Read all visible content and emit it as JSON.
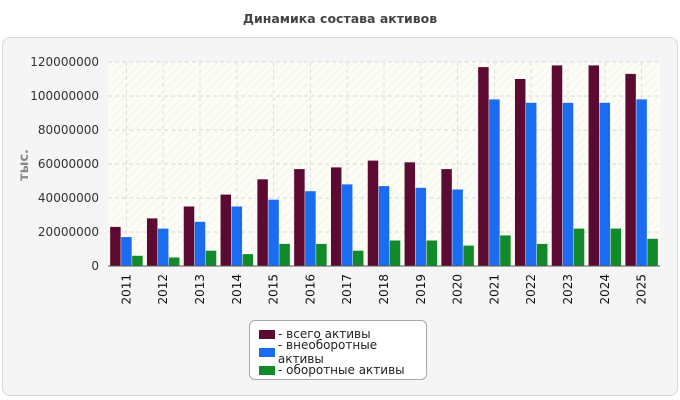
{
  "chart_data": {
    "type": "bar",
    "title": "Динамика состава активов",
    "xlabel": "",
    "ylabel": "тыс.",
    "ylim": [
      0,
      120000000
    ],
    "yticks": [
      0,
      20000000,
      40000000,
      60000000,
      80000000,
      100000000,
      120000000
    ],
    "grid": true,
    "legend_position": "bottom",
    "categories": [
      "2011",
      "2012",
      "2013",
      "2014",
      "2015",
      "2016",
      "2017",
      "2018",
      "2019",
      "2020",
      "2021",
      "2022",
      "2023",
      "2024",
      "2025"
    ],
    "series": [
      {
        "name": "- всего активы",
        "color": "#5c0a32",
        "values": [
          23000000,
          28000000,
          35000000,
          42000000,
          51000000,
          57000000,
          58000000,
          62000000,
          61000000,
          57000000,
          117000000,
          110000000,
          118000000,
          118000000,
          113000000
        ]
      },
      {
        "name": "- внеоборотные активы",
        "color": "#1a6cf0",
        "values": [
          17000000,
          22000000,
          26000000,
          35000000,
          39000000,
          44000000,
          48000000,
          47000000,
          46000000,
          45000000,
          98000000,
          96000000,
          96000000,
          96000000,
          98000000
        ]
      },
      {
        "name": "- оборотные активы",
        "color": "#138a2a",
        "values": [
          6000000,
          5000000,
          9000000,
          7000000,
          13000000,
          13000000,
          9000000,
          15000000,
          15000000,
          12000000,
          18000000,
          13000000,
          22000000,
          22000000,
          16000000
        ]
      }
    ]
  }
}
